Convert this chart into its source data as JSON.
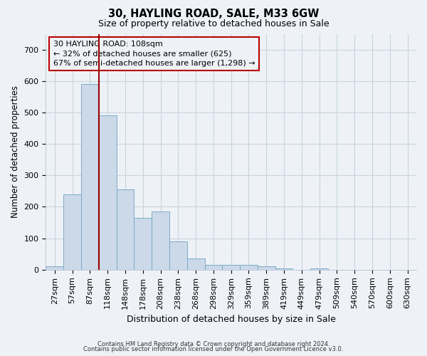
{
  "title": "30, HAYLING ROAD, SALE, M33 6GW",
  "subtitle": "Size of property relative to detached houses in Sale",
  "xlabel": "Distribution of detached houses by size in Sale",
  "ylabel": "Number of detached properties",
  "property_label": "30 HAYLING ROAD: 108sqm",
  "annotation_line1": "← 32% of detached houses are smaller (625)",
  "annotation_line2": "67% of semi-detached houses are larger (1,298) →",
  "footer1": "Contains HM Land Registry data © Crown copyright and database right 2024.",
  "footer2": "Contains public sector information licensed under the Open Government Licence v3.0.",
  "bar_color": "#ccd9e8",
  "bar_edge_color": "#7aaac8",
  "grid_color": "#c8d4e0",
  "vline_color": "#990000",
  "annotation_box_edge": "#bb0000",
  "background_color": "#eef2f7",
  "bins": [
    "27sqm",
    "57sqm",
    "87sqm",
    "118sqm",
    "148sqm",
    "178sqm",
    "208sqm",
    "238sqm",
    "268sqm",
    "298sqm",
    "329sqm",
    "359sqm",
    "389sqm",
    "419sqm",
    "449sqm",
    "479sqm",
    "509sqm",
    "540sqm",
    "570sqm",
    "600sqm",
    "630sqm"
  ],
  "values": [
    10,
    240,
    590,
    490,
    255,
    165,
    185,
    90,
    35,
    15,
    15,
    15,
    10,
    5,
    0,
    5,
    0,
    0,
    0,
    0,
    0
  ],
  "ylim": [
    0,
    750
  ],
  "yticks": [
    0,
    100,
    200,
    300,
    400,
    500,
    600,
    700
  ],
  "vline_x_bin_idx": 3,
  "title_fontsize": 10.5,
  "subtitle_fontsize": 9,
  "xlabel_fontsize": 9,
  "ylabel_fontsize": 8.5,
  "tick_fontsize": 8,
  "footer_fontsize": 6
}
